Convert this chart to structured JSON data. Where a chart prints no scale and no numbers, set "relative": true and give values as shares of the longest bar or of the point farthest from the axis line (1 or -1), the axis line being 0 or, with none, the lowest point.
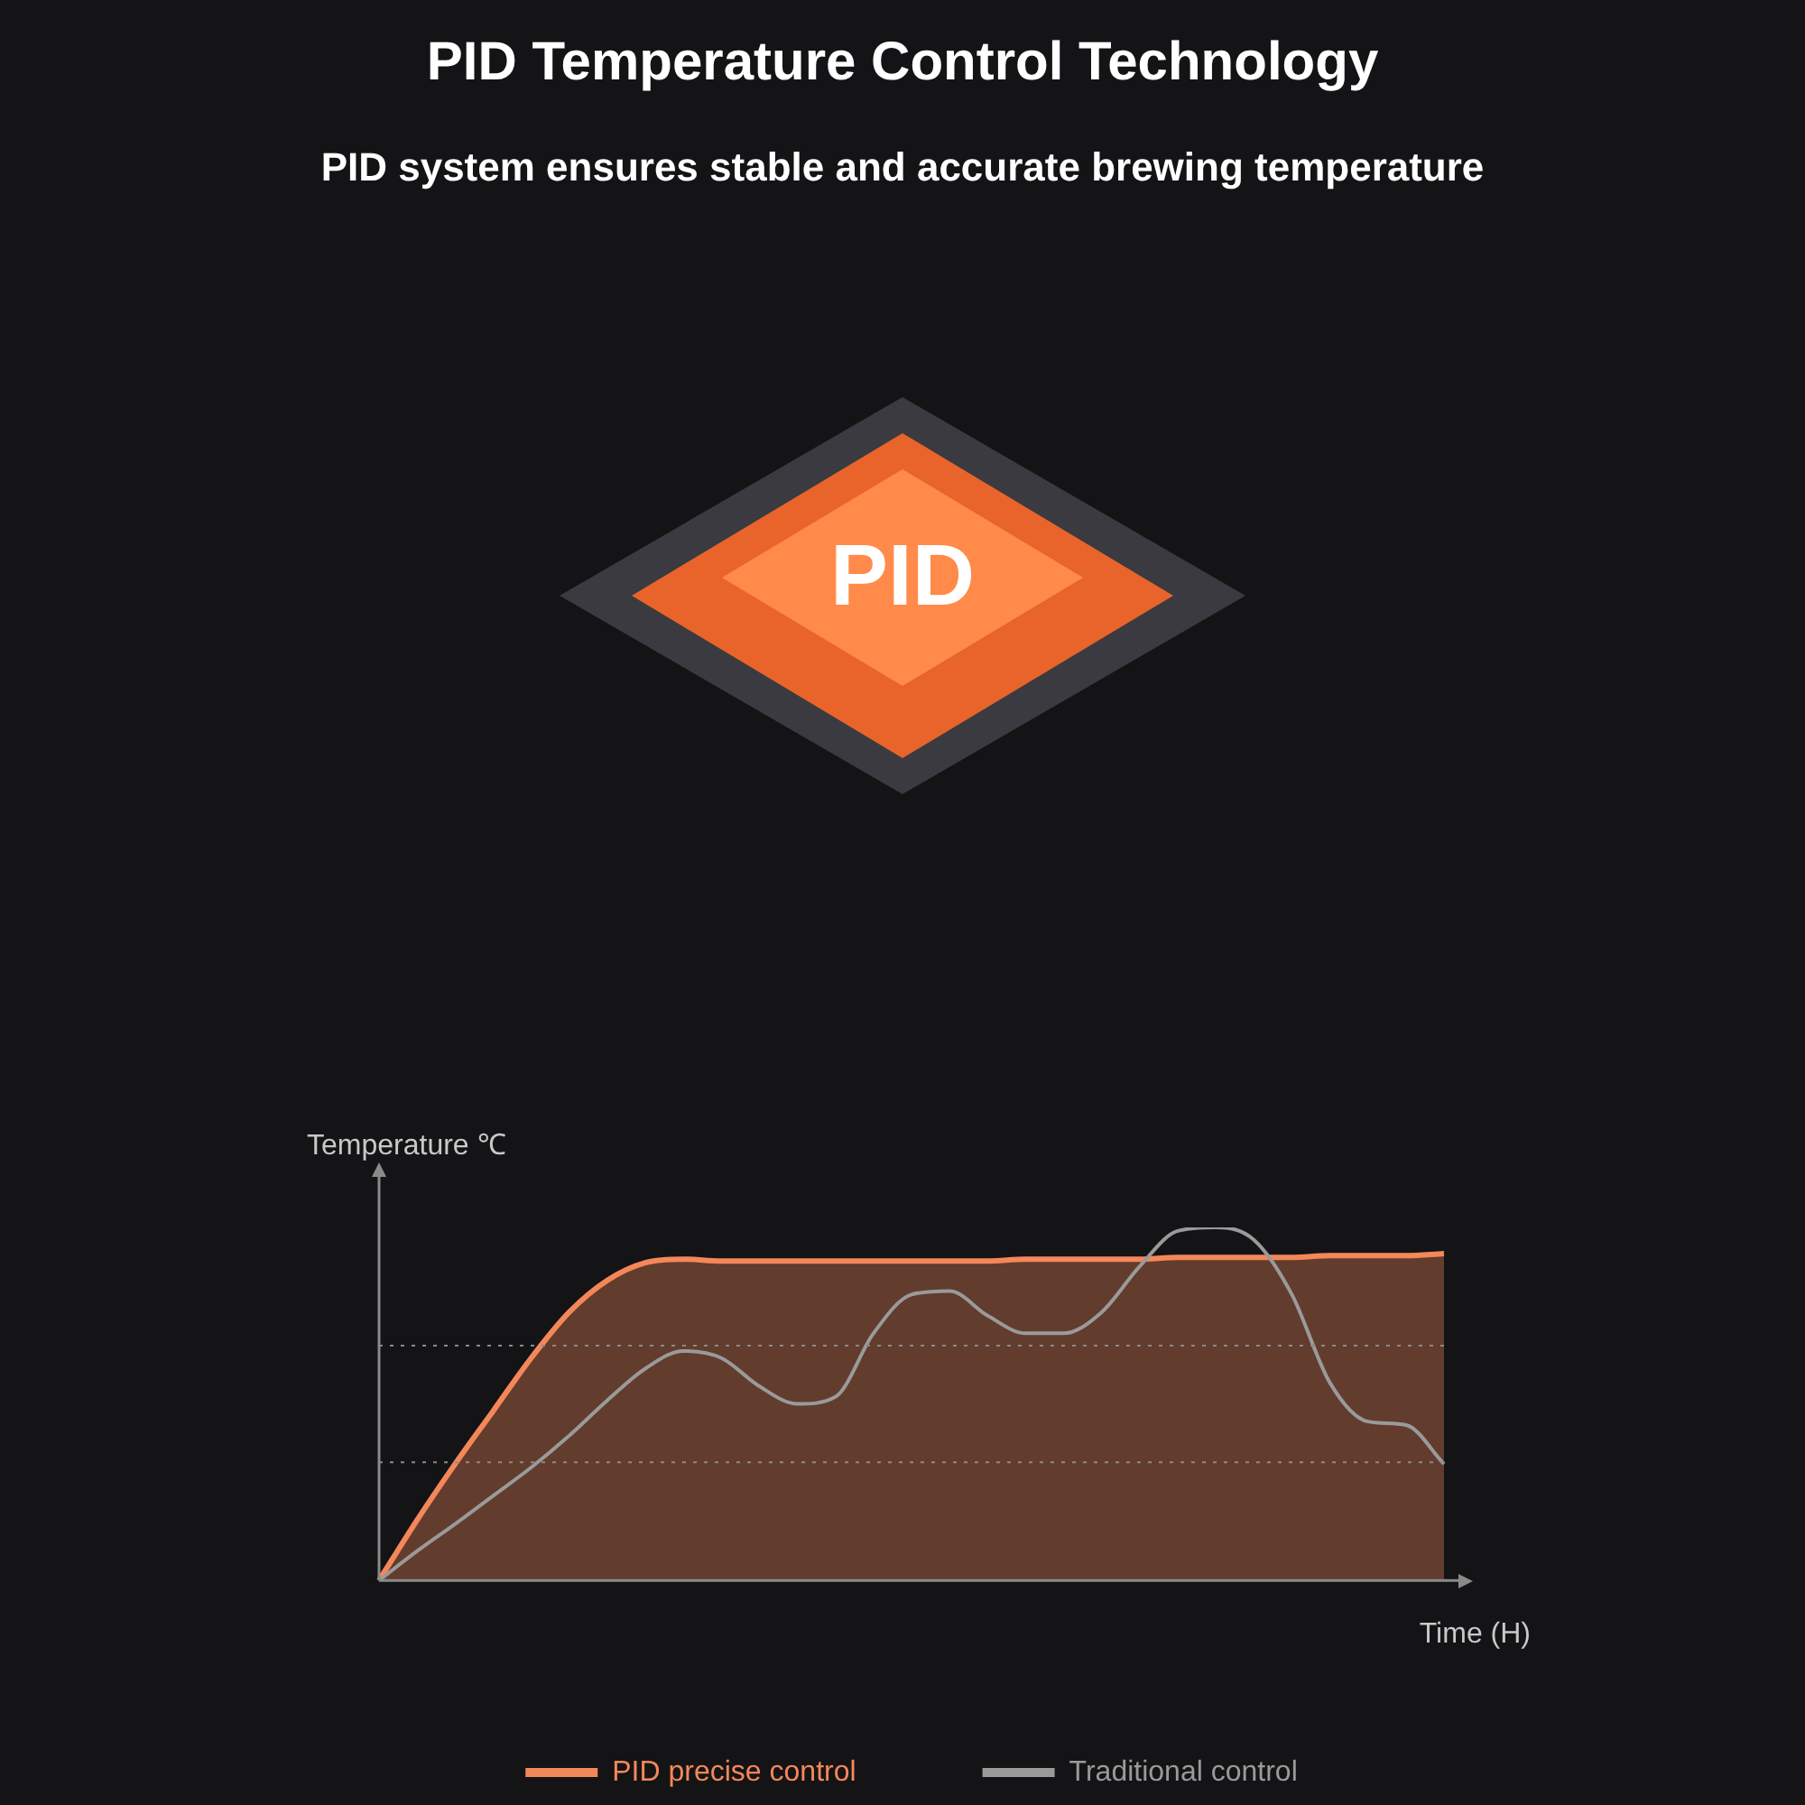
{
  "chart_data": {
    "type": "area",
    "title": "PID Temperature Control Technology",
    "subtitle": "PID system ensures stable and accurate brewing temperature",
    "ylabel": "Temperature ℃",
    "xlabel": "Time (H)",
    "relative": true,
    "annotations": [
      "PID"
    ],
    "categories": [
      null,
      null,
      null,
      null,
      null,
      null,
      null,
      null,
      null,
      null,
      null,
      null,
      null,
      null,
      null,
      null,
      null,
      null,
      null,
      null,
      null,
      null,
      null,
      null,
      null,
      null,
      null,
      null,
      null
    ],
    "series": [
      {
        "name": "PID precise control",
        "color": "#f4875a",
        "values": [
          0,
          0.171,
          0.33,
          0.48,
          0.63,
          0.76,
          0.85,
          0.9,
          0.91,
          0.905,
          0.905,
          0.905,
          0.905,
          0.905,
          0.905,
          0.905,
          0.905,
          0.91,
          0.91,
          0.91,
          0.91,
          0.915,
          0.915,
          0.915,
          0.915,
          0.92,
          0.92,
          0.92,
          0.926
        ]
      },
      {
        "name": "Traditional control",
        "type": "line",
        "color": "#9a9a9a",
        "values": [
          0,
          0.083,
          0.16,
          0.24,
          0.32,
          0.41,
          0.51,
          0.6,
          0.65,
          0.63,
          0.55,
          0.5,
          0.52,
          0.7,
          0.81,
          0.82,
          0.75,
          0.7,
          0.7,
          0.76,
          0.89,
          0.99,
          1,
          0.965,
          0.81,
          0.56,
          0.45,
          0.44,
          0.33
        ]
      }
    ],
    "ref_lines": [
      {
        "axis": "y",
        "value": 0.665,
        "color": "#8a8a8a",
        "line_style": "dotted"
      },
      {
        "axis": "y",
        "value": 0.335,
        "color": "#8a8a8a",
        "line_style": "dotted"
      }
    ],
    "grid": false,
    "legend": "bottom",
    "marker": "none"
  }
}
